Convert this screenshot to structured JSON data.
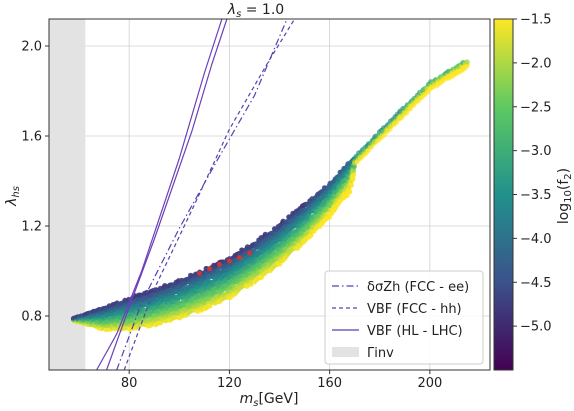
{
  "chart_data": {
    "type": "scatter",
    "title": "λs = 1.0",
    "xlabel": "ms[GeV]",
    "ylabel": "λhs",
    "xlim": [
      48,
      224
    ],
    "ylim": [
      0.56,
      2.12
    ],
    "xticks": [
      80,
      120,
      160,
      200
    ],
    "yticks": [
      0.8,
      1.2,
      1.6,
      2.0
    ],
    "grid": true,
    "excluded_region": {
      "name": "Γinv",
      "x": [
        48,
        62.5
      ],
      "color": "#d9d9d9"
    },
    "colorbar": {
      "label": "log10(f2)",
      "range": [
        -5.5,
        -1.5
      ],
      "ticks": [
        -1.5,
        -2.0,
        -2.5,
        -3.0,
        -3.5,
        -4.0,
        -4.5,
        -5.0
      ],
      "colormap": "viridis"
    },
    "scatter_band": {
      "lower_edge": [
        [
          58,
          0.78
        ],
        [
          70,
          0.74
        ],
        [
          80,
          0.74
        ],
        [
          90,
          0.76
        ],
        [
          100,
          0.79
        ],
        [
          110,
          0.83
        ],
        [
          120,
          0.88
        ],
        [
          130,
          0.95
        ],
        [
          140,
          1.03
        ],
        [
          150,
          1.13
        ],
        [
          160,
          1.24
        ],
        [
          168,
          1.35
        ],
        [
          170,
          1.44
        ]
      ],
      "upper_edge": [
        [
          58,
          0.79
        ],
        [
          70,
          0.84
        ],
        [
          80,
          0.88
        ],
        [
          90,
          0.92
        ],
        [
          100,
          0.96
        ],
        [
          110,
          1.01
        ],
        [
          120,
          1.06
        ],
        [
          130,
          1.13
        ],
        [
          140,
          1.21
        ],
        [
          150,
          1.3
        ],
        [
          160,
          1.39
        ],
        [
          170,
          1.51
        ],
        [
          180,
          1.62
        ],
        [
          190,
          1.73
        ],
        [
          200,
          1.84
        ],
        [
          215,
          1.94
        ]
      ],
      "red_points": [
        [
          108,
          0.99
        ],
        [
          112,
          1.01
        ],
        [
          116,
          1.03
        ],
        [
          120,
          1.045
        ],
        [
          124,
          1.06
        ],
        [
          128,
          1.08
        ]
      ]
    },
    "series": [
      {
        "name": "δσZh (FCC - ee)",
        "style": "dashdot",
        "color": "#5b3fb0",
        "points": [
          [
            75,
            0.56
          ],
          [
            85,
            0.86
          ],
          [
            100,
            1.19
          ],
          [
            115,
            1.49
          ],
          [
            130,
            1.78
          ],
          [
            143,
            2.12
          ]
        ]
      },
      {
        "name": "VBF (FCC - hh)",
        "style": "dashed",
        "color": "#5b3fb0",
        "points": [
          [
            78,
            0.56
          ],
          [
            90,
            0.92
          ],
          [
            105,
            1.27
          ],
          [
            120,
            1.63
          ],
          [
            135,
            1.92
          ],
          [
            146,
            2.12
          ]
        ]
      },
      {
        "name": "VBF (HL - LHC)",
        "style": "solid",
        "color": "#6a3fb8",
        "points": [
          [
            67,
            0.56
          ],
          [
            75,
            0.72
          ],
          [
            85,
            1.0
          ],
          [
            100,
            1.5
          ],
          [
            110,
            1.88
          ],
          [
            117,
            2.12
          ]
        ]
      },
      {
        "name": "VBF (HL - LHC)",
        "style": "solid",
        "color": "#6a3fb8",
        "points": [
          [
            71,
            0.56
          ],
          [
            80,
            0.84
          ],
          [
            90,
            1.14
          ],
          [
            105,
            1.62
          ],
          [
            113,
            1.92
          ],
          [
            119,
            2.12
          ]
        ]
      }
    ],
    "legend": {
      "position": "lower-right",
      "entries": [
        {
          "label": "δσZh (FCC - ee)",
          "style": "dashdot"
        },
        {
          "label": "VBF (FCC - hh)",
          "style": "dashed"
        },
        {
          "label": "VBF (HL - LHC)",
          "style": "solid"
        },
        {
          "label": "Γinv",
          "style": "patch"
        }
      ]
    }
  }
}
